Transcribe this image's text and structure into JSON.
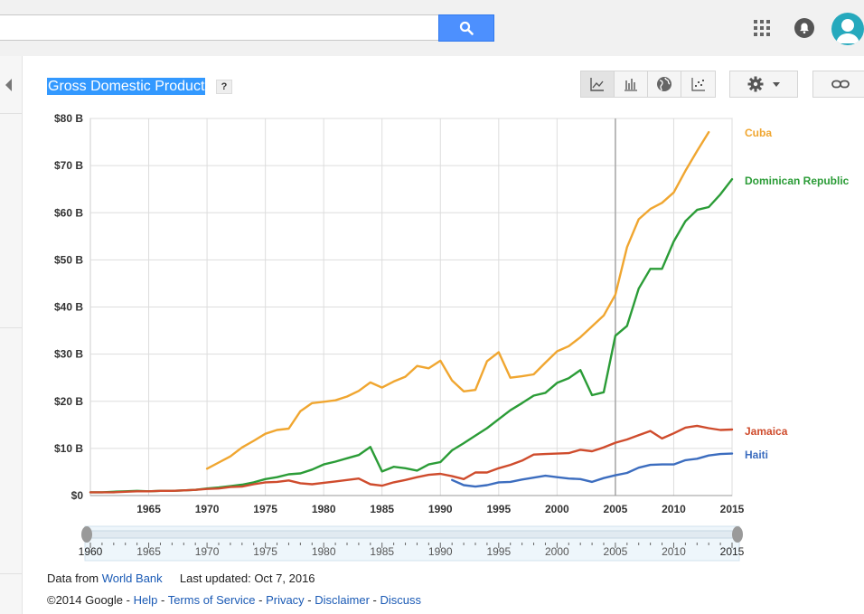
{
  "header": {
    "search_value": ""
  },
  "panel": {
    "title": "Gross Domestic Product",
    "help": "?"
  },
  "chart_data": {
    "type": "line",
    "title": "Gross Domestic Product",
    "xlabel": "",
    "ylabel": "",
    "xlim": [
      1960,
      2015
    ],
    "ylim": [
      0,
      80
    ],
    "grid": true,
    "legend": "right",
    "x_ticks": [
      "1965",
      "1970",
      "1975",
      "1980",
      "1985",
      "1990",
      "1995",
      "2000",
      "2005",
      "2010",
      "2015"
    ],
    "y_ticks": [
      "$0",
      "$10 B",
      "$20 B",
      "$30 B",
      "$40 B",
      "$50 B",
      "$60 B",
      "$70 B",
      "$80 B"
    ],
    "series": [
      {
        "name": "Cuba",
        "color": "#f0a630",
        "x": [
          1970,
          1971,
          1972,
          1973,
          1974,
          1975,
          1976,
          1977,
          1978,
          1979,
          1980,
          1981,
          1982,
          1983,
          1984,
          1985,
          1986,
          1987,
          1988,
          1989,
          1990,
          1991,
          1992,
          1993,
          1994,
          1995,
          1996,
          1997,
          1998,
          1999,
          2000,
          2001,
          2002,
          2003,
          2004,
          2005,
          2006,
          2007,
          2008,
          2009,
          2010,
          2011,
          2012,
          2013
        ],
        "y": [
          5.7,
          7.0,
          8.3,
          10.2,
          11.6,
          13.1,
          13.9,
          14.2,
          17.9,
          19.6,
          19.9,
          20.2,
          21.0,
          22.2,
          24.0,
          22.9,
          24.2,
          25.2,
          27.5,
          27.0,
          28.6,
          24.4,
          22.1,
          22.4,
          28.5,
          30.4,
          25.0,
          25.3,
          25.7,
          28.2,
          30.6,
          31.7,
          33.6,
          35.9,
          38.2,
          42.6,
          52.7,
          58.6,
          60.8,
          62.1,
          64.3,
          68.9,
          73.1,
          77.1
        ]
      },
      {
        "name": "Dominican Republic",
        "color": "#2b9c37",
        "x": [
          1960,
          1961,
          1962,
          1963,
          1964,
          1965,
          1966,
          1967,
          1968,
          1969,
          1970,
          1971,
          1972,
          1973,
          1974,
          1975,
          1976,
          1977,
          1978,
          1979,
          1980,
          1981,
          1982,
          1983,
          1984,
          1985,
          1986,
          1987,
          1988,
          1989,
          1990,
          1991,
          1992,
          1993,
          1994,
          1995,
          1996,
          1997,
          1998,
          1999,
          2000,
          2001,
          2002,
          2003,
          2004,
          2005,
          2006,
          2007,
          2008,
          2009,
          2010,
          2011,
          2012,
          2013,
          2014,
          2015
        ],
        "y": [
          0.7,
          0.7,
          0.8,
          0.9,
          1.0,
          0.9,
          1.0,
          1.0,
          1.1,
          1.2,
          1.5,
          1.7,
          2.0,
          2.3,
          2.8,
          3.5,
          3.9,
          4.5,
          4.7,
          5.5,
          6.6,
          7.2,
          7.9,
          8.6,
          10.3,
          5.1,
          6.1,
          5.8,
          5.3,
          6.6,
          7.1,
          9.6,
          11.1,
          12.7,
          14.3,
          16.2,
          18.1,
          19.6,
          21.2,
          21.8,
          23.9,
          24.9,
          26.6,
          21.3,
          21.9,
          33.9,
          36.0,
          43.9,
          48.1,
          48.1,
          53.9,
          58.2,
          60.6,
          61.2,
          63.9,
          67.1
        ]
      },
      {
        "name": "Jamaica",
        "color": "#cf4c2d",
        "x": [
          1960,
          1961,
          1962,
          1963,
          1964,
          1965,
          1966,
          1967,
          1968,
          1969,
          1970,
          1971,
          1972,
          1973,
          1974,
          1975,
          1976,
          1977,
          1978,
          1979,
          1980,
          1981,
          1982,
          1983,
          1984,
          1985,
          1986,
          1987,
          1988,
          1989,
          1990,
          1991,
          1992,
          1993,
          1994,
          1995,
          1996,
          1997,
          1998,
          1999,
          2000,
          2001,
          2002,
          2003,
          2004,
          2005,
          2006,
          2007,
          2008,
          2009,
          2010,
          2011,
          2012,
          2013,
          2014,
          2015
        ],
        "y": [
          0.7,
          0.7,
          0.7,
          0.8,
          0.9,
          0.9,
          1.0,
          1.0,
          1.1,
          1.2,
          1.4,
          1.5,
          1.8,
          1.9,
          2.4,
          2.8,
          2.9,
          3.2,
          2.6,
          2.4,
          2.7,
          3.0,
          3.3,
          3.6,
          2.4,
          2.1,
          2.8,
          3.3,
          3.9,
          4.4,
          4.6,
          4.1,
          3.5,
          4.9,
          4.9,
          5.8,
          6.5,
          7.4,
          8.7,
          8.8,
          8.9,
          9.0,
          9.7,
          9.4,
          10.2,
          11.2,
          11.9,
          12.8,
          13.7,
          12.1,
          13.2,
          14.4,
          14.8,
          14.3,
          13.9,
          14.0
        ]
      },
      {
        "name": "Haiti",
        "color": "#3c6dbf",
        "x": [
          1991,
          1992,
          1993,
          1994,
          1995,
          1996,
          1997,
          1998,
          1999,
          2000,
          2001,
          2002,
          2003,
          2004,
          2005,
          2006,
          2007,
          2008,
          2009,
          2010,
          2011,
          2012,
          2013,
          2014,
          2015
        ],
        "y": [
          3.3,
          2.2,
          1.9,
          2.2,
          2.8,
          2.9,
          3.4,
          3.8,
          4.2,
          3.9,
          3.6,
          3.5,
          2.9,
          3.7,
          4.3,
          4.8,
          5.9,
          6.5,
          6.6,
          6.6,
          7.5,
          7.8,
          8.5,
          8.8,
          8.9
        ]
      }
    ]
  },
  "range_slider": {
    "start_label": "1960",
    "end_label": "2015",
    "ticks": [
      "1965",
      "1970",
      "1975",
      "1980",
      "1985",
      "1990",
      "1995",
      "2000",
      "2005",
      "2010"
    ]
  },
  "footer": {
    "data_from_label": "Data from",
    "source_link": "World Bank",
    "last_updated": "Last updated: Oct 7, 2016",
    "copyright": "©2014 Google -",
    "links": [
      "Help",
      "Terms of Service",
      "Privacy",
      "Disclaimer",
      "Discuss"
    ],
    "separator": " - "
  }
}
